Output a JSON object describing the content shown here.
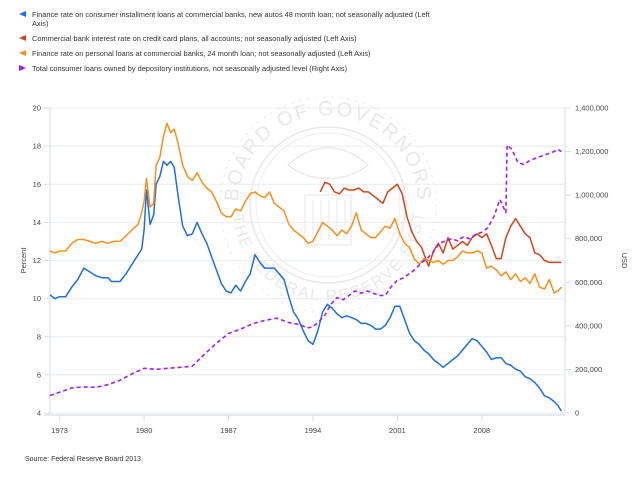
{
  "chart_data": {
    "type": "line",
    "title": "",
    "source": "Source: Federal Reserve Board 2013",
    "left_axis": {
      "label": "Percent",
      "ylim": [
        4,
        20
      ],
      "ticks": [
        4,
        6,
        8,
        10,
        12,
        14,
        16,
        18,
        20
      ]
    },
    "right_axis": {
      "label": "USD",
      "ylim": [
        0,
        1400000
      ],
      "ticks": [
        0,
        200000,
        400000,
        600000,
        800000,
        1000000,
        1200000,
        1400000
      ],
      "tick_labels": [
        "0",
        "200,000",
        "400,000",
        "600,000",
        "800,000",
        "1,000,000",
        "1,200,000",
        "1,400,000"
      ]
    },
    "x_axis": {
      "xlim": [
        1972.2,
        2014.9
      ],
      "ticks": [
        1973,
        1980,
        1987,
        1994,
        2001,
        2008
      ],
      "tick_labels": [
        "1973",
        "1980",
        "1987",
        "1994",
        "2001",
        "2008"
      ]
    },
    "grid": true,
    "legend_position": "top",
    "series": [
      {
        "name": "Finance rate on consumer installment loans at commercial banks, new autos 48 month loan; not seasonally adjusted (Left Axis)",
        "color": "#1f6fd6",
        "axis": "left",
        "style": "solid",
        "x": [
          1972.2,
          1972.6,
          1973.0,
          1973.5,
          1974.0,
          1974.5,
          1975.0,
          1975.5,
          1976.0,
          1976.5,
          1977.0,
          1977.3,
          1977.6,
          1978.0,
          1978.5,
          1979.0,
          1979.5,
          1979.8,
          1980.0,
          1980.2,
          1980.5,
          1980.8,
          1981.0,
          1981.3,
          1981.6,
          1981.9,
          1982.2,
          1982.5,
          1982.8,
          1983.2,
          1983.6,
          1984.0,
          1984.4,
          1984.8,
          1985.2,
          1985.6,
          1986.0,
          1986.4,
          1986.8,
          1987.2,
          1987.6,
          1988.0,
          1988.4,
          1988.8,
          1989.2,
          1989.6,
          1990.0,
          1990.4,
          1990.8,
          1991.2,
          1991.6,
          1992.0,
          1992.4,
          1992.8,
          1993.2,
          1993.6,
          1994.0,
          1994.4,
          1994.8,
          1995.2,
          1995.6,
          1996.0,
          1996.4,
          1996.8,
          1997.2,
          1997.6,
          1998.0,
          1998.4,
          1998.8,
          1999.2,
          1999.6,
          2000.0,
          2000.4,
          2000.8,
          2001.2,
          2001.6,
          2002.0,
          2002.4,
          2002.8,
          2003.2,
          2003.6,
          2004.0,
          2004.4,
          2004.8,
          2005.2,
          2005.6,
          2006.0,
          2006.4,
          2006.8,
          2007.2,
          2007.6,
          2008.0,
          2008.4,
          2008.8,
          2009.2,
          2009.6,
          2010.0,
          2010.4,
          2010.8,
          2011.2,
          2011.6,
          2012.0,
          2012.4,
          2012.8,
          2013.2,
          2013.6,
          2014.0,
          2014.3,
          2014.6
        ],
        "values": [
          10.2,
          10.0,
          10.1,
          10.1,
          10.6,
          11.0,
          11.6,
          11.4,
          11.2,
          11.1,
          11.1,
          10.9,
          10.9,
          10.9,
          11.3,
          11.8,
          12.3,
          12.6,
          13.6,
          15.7,
          13.9,
          14.4,
          16.0,
          16.4,
          17.2,
          17.0,
          17.2,
          16.9,
          15.5,
          13.8,
          13.3,
          13.4,
          14.0,
          13.4,
          12.9,
          12.2,
          11.5,
          10.8,
          10.4,
          10.3,
          10.7,
          10.4,
          10.9,
          11.3,
          12.3,
          11.9,
          11.6,
          11.6,
          11.6,
          11.3,
          11.0,
          10.1,
          9.3,
          8.9,
          8.3,
          7.8,
          7.6,
          8.3,
          9.3,
          9.7,
          9.5,
          9.2,
          9.0,
          9.1,
          9.0,
          8.9,
          8.7,
          8.7,
          8.6,
          8.4,
          8.4,
          8.6,
          9.0,
          9.6,
          9.6,
          8.9,
          8.2,
          7.8,
          7.6,
          7.3,
          7.1,
          6.8,
          6.6,
          6.4,
          6.6,
          6.8,
          7.0,
          7.3,
          7.6,
          7.9,
          7.8,
          7.5,
          7.2,
          6.8,
          6.9,
          6.9,
          6.6,
          6.5,
          6.3,
          6.2,
          5.9,
          5.8,
          5.6,
          5.3,
          4.9,
          4.8,
          4.6,
          4.4,
          4.1
        ]
      },
      {
        "name": "Commercial bank interest rate on credit card plans, all accounts; not seasonally adjusted (Left Axis)",
        "color": "#d0441c",
        "axis": "left",
        "style": "solid",
        "x": [
          1994.6,
          1995.0,
          1995.4,
          1995.8,
          1996.2,
          1996.6,
          1997.0,
          1997.4,
          1997.8,
          1998.2,
          1998.6,
          1999.0,
          1999.4,
          1999.8,
          2000.2,
          2000.6,
          2001.0,
          2001.4,
          2001.8,
          2002.2,
          2002.6,
          2003.0,
          2003.4,
          2003.6,
          2004.0,
          2004.4,
          2004.8,
          2005.2,
          2005.6,
          2006.0,
          2006.4,
          2006.8,
          2007.2,
          2007.6,
          2008.0,
          2008.4,
          2008.8,
          2009.2,
          2009.6,
          2010.0,
          2010.4,
          2010.8,
          2011.2,
          2011.6,
          2012.0,
          2012.4,
          2012.8,
          2013.2,
          2013.6,
          2014.0,
          2014.4,
          2014.6
        ],
        "values": [
          15.6,
          16.1,
          16.0,
          15.6,
          15.5,
          15.8,
          15.7,
          15.7,
          15.8,
          15.6,
          15.6,
          15.4,
          15.2,
          15.0,
          15.6,
          15.8,
          16.0,
          15.5,
          14.3,
          13.5,
          13.0,
          12.7,
          12.0,
          11.7,
          12.5,
          12.9,
          12.4,
          13.2,
          12.6,
          12.8,
          13.0,
          12.8,
          13.2,
          13.4,
          13.2,
          13.4,
          12.8,
          12.1,
          12.1,
          13.2,
          13.8,
          14.2,
          13.8,
          13.4,
          13.2,
          12.4,
          12.3,
          12.0,
          11.9,
          11.9,
          11.9,
          11.9
        ]
      },
      {
        "name": "Finance rate on personal loans at commercial banks, 24 month loan; not seasonally adjusted (Left Axis)",
        "color": "#f5901e",
        "axis": "left",
        "style": "solid",
        "x": [
          1972.2,
          1972.6,
          1973.0,
          1973.5,
          1974.0,
          1974.5,
          1975.0,
          1975.5,
          1976.0,
          1976.5,
          1977.0,
          1977.5,
          1978.0,
          1978.5,
          1979.0,
          1979.5,
          1979.8,
          1980.0,
          1980.2,
          1980.5,
          1980.8,
          1981.0,
          1981.3,
          1981.6,
          1981.9,
          1982.2,
          1982.5,
          1982.8,
          1983.2,
          1983.6,
          1984.0,
          1984.4,
          1984.8,
          1985.2,
          1985.6,
          1986.0,
          1986.4,
          1986.8,
          1987.2,
          1987.6,
          1988.0,
          1988.4,
          1988.8,
          1989.2,
          1989.6,
          1990.0,
          1990.4,
          1990.8,
          1991.2,
          1991.6,
          1992.0,
          1992.4,
          1992.8,
          1993.2,
          1993.6,
          1994.0,
          1994.4,
          1994.8,
          1995.2,
          1995.6,
          1996.0,
          1996.4,
          1996.8,
          1997.2,
          1997.6,
          1998.0,
          1998.4,
          1998.8,
          1999.2,
          1999.6,
          2000.0,
          2000.4,
          2000.8,
          2001.2,
          2001.6,
          2002.0,
          2002.4,
          2002.8,
          2003.2,
          2003.6,
          2004.0,
          2004.4,
          2004.8,
          2005.2,
          2005.6,
          2006.0,
          2006.4,
          2006.8,
          2007.2,
          2007.6,
          2008.0,
          2008.4,
          2008.8,
          2009.2,
          2009.6,
          2010.0,
          2010.4,
          2010.8,
          2011.2,
          2011.6,
          2012.0,
          2012.4,
          2012.8,
          2013.2,
          2013.6,
          2014.0,
          2014.3,
          2014.6
        ],
        "values": [
          12.5,
          12.4,
          12.5,
          12.5,
          12.9,
          13.1,
          13.1,
          13.0,
          12.9,
          13.0,
          12.9,
          13.0,
          13.0,
          13.3,
          13.6,
          13.9,
          14.5,
          15.1,
          16.3,
          14.8,
          15.0,
          17.0,
          17.4,
          18.5,
          19.2,
          18.7,
          18.9,
          18.2,
          17.0,
          16.4,
          16.2,
          16.6,
          16.1,
          15.8,
          15.6,
          15.1,
          14.5,
          14.3,
          14.3,
          14.7,
          14.6,
          15.1,
          15.5,
          15.6,
          15.4,
          15.3,
          15.6,
          15.0,
          14.8,
          14.6,
          13.9,
          13.6,
          13.4,
          13.2,
          12.9,
          13.0,
          13.5,
          14.0,
          13.8,
          13.6,
          13.3,
          13.6,
          13.4,
          13.8,
          14.5,
          13.6,
          13.4,
          13.2,
          13.2,
          13.5,
          13.8,
          13.7,
          14.2,
          13.4,
          12.9,
          12.7,
          12.1,
          11.8,
          12.1,
          12.0,
          11.9,
          12.0,
          11.8,
          12.0,
          12.0,
          12.2,
          12.5,
          12.4,
          12.4,
          12.5,
          12.4,
          11.6,
          11.7,
          11.5,
          11.2,
          11.4,
          11.0,
          11.3,
          10.9,
          11.1,
          10.8,
          11.3,
          10.6,
          10.5,
          11.0,
          10.3,
          10.4,
          10.6
        ]
      },
      {
        "name": "Total consumer loans owned by depository institutions, not seasonally adjusted level (Right Axis)",
        "color": "#a020f0",
        "axis": "right",
        "style": "dashed",
        "x": [
          1972.2,
          1973.0,
          1974.0,
          1975.0,
          1976.0,
          1977.0,
          1978.0,
          1979.0,
          1980.0,
          1981.0,
          1982.0,
          1983.0,
          1984.0,
          1985.0,
          1986.0,
          1987.0,
          1988.0,
          1989.0,
          1990.0,
          1991.0,
          1992.0,
          1993.0,
          1993.5,
          1994.0,
          1994.5,
          1995.0,
          1995.5,
          1996.0,
          1996.5,
          1997.0,
          1997.5,
          1998.0,
          1998.5,
          1999.0,
          1999.5,
          2000.0,
          2000.5,
          2001.0,
          2001.5,
          2002.0,
          2002.5,
          2003.0,
          2003.5,
          2004.0,
          2004.5,
          2005.0,
          2005.5,
          2006.0,
          2006.5,
          2007.0,
          2007.5,
          2008.0,
          2008.5,
          2009.0,
          2009.5,
          2010.0,
          2010.1,
          2010.5,
          2011.0,
          2011.5,
          2012.0,
          2012.5,
          2013.0,
          2013.5,
          2014.0,
          2014.3,
          2014.6
        ],
        "values": [
          80000,
          95000,
          115000,
          120000,
          118000,
          130000,
          150000,
          180000,
          205000,
          200000,
          205000,
          210000,
          215000,
          270000,
          320000,
          365000,
          385000,
          410000,
          425000,
          435000,
          415000,
          405000,
          390000,
          395000,
          420000,
          450000,
          500000,
          530000,
          520000,
          540000,
          560000,
          550000,
          560000,
          550000,
          540000,
          540000,
          580000,
          610000,
          620000,
          640000,
          660000,
          690000,
          710000,
          740000,
          780000,
          790000,
          800000,
          790000,
          810000,
          800000,
          820000,
          830000,
          850000,
          900000,
          980000,
          920000,
          1230000,
          1210000,
          1150000,
          1140000,
          1160000,
          1170000,
          1180000,
          1190000,
          1200000,
          1210000,
          1200000
        ]
      }
    ]
  },
  "legend": {
    "items": [
      {
        "label": "Finance rate on consumer installment loans at commercial banks, new autos 48 month loan; not seasonally adjusted (Left Axis)"
      },
      {
        "label": "Commercial bank interest rate on credit card plans, all accounts; not seasonally adjusted (Left Axis)"
      },
      {
        "label": "Finance rate on personal loans at commercial banks, 24 month loan; not seasonally adjusted (Left Axis)"
      },
      {
        "label": "Total consumer loans owned by depository institutions, not seasonally adjusted level (Right Axis)"
      }
    ]
  },
  "watermark": {
    "text_top": "BOARD OF GOVERNORS",
    "text_bottom": "OF THE FEDERAL RESERVE SYSTEM"
  }
}
